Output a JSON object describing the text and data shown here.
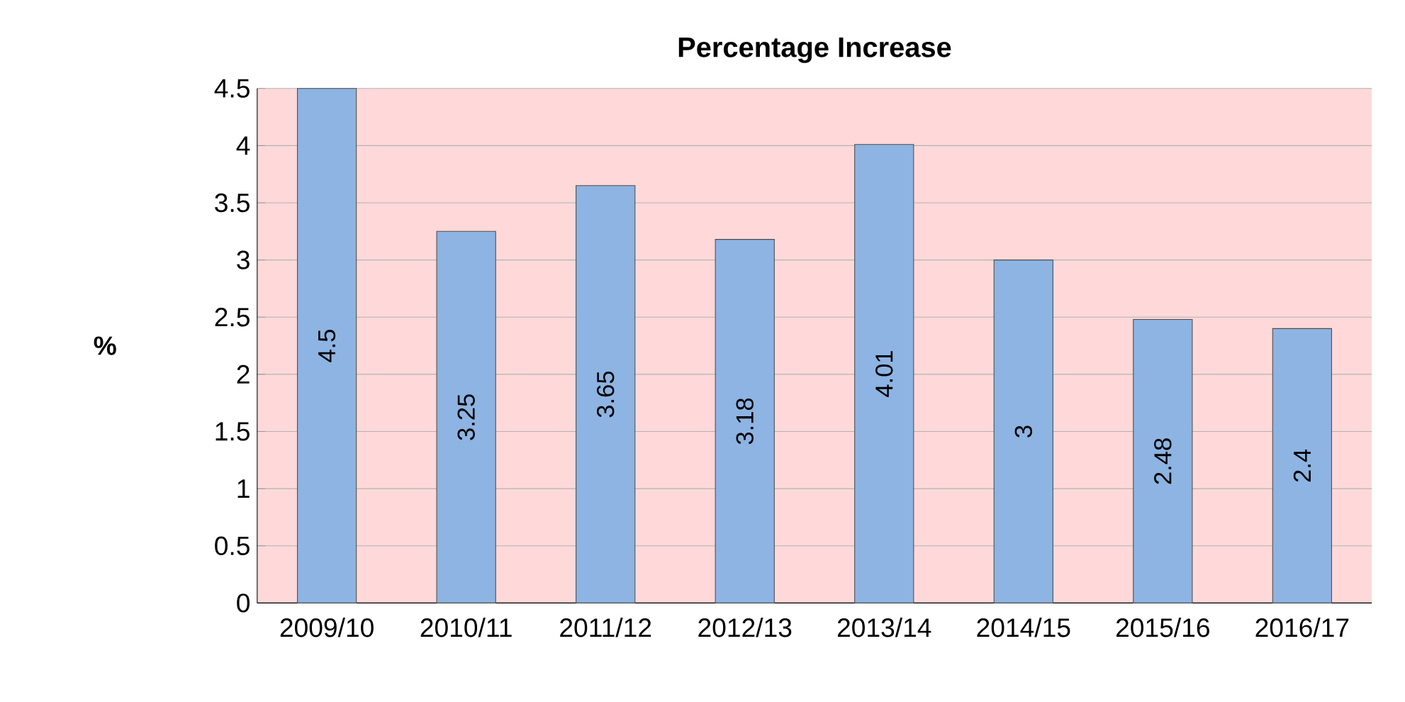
{
  "chart_data": {
    "type": "bar",
    "title": "Percentage Increase",
    "ylabel": "%",
    "categories": [
      "2009/10",
      "2010/11",
      "2011/12",
      "2012/13",
      "2013/14",
      "2014/15",
      "2015/16",
      "2016/17"
    ],
    "values": [
      4.5,
      3.25,
      3.65,
      3.18,
      4.01,
      3,
      2.48,
      2.4
    ],
    "color": "#8db4e2",
    "ylim": [
      0,
      4.5
    ],
    "yticks": [
      0,
      0.5,
      1,
      1.5,
      2,
      2.5,
      3,
      3.5,
      4,
      4.5
    ],
    "grid": "y",
    "data_labels": true
  }
}
